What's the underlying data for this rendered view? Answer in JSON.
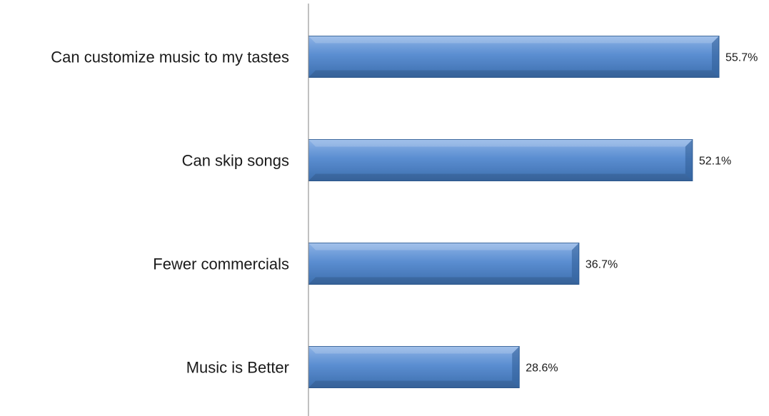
{
  "chart_data": {
    "type": "bar",
    "orientation": "horizontal",
    "categories": [
      "Can customize music to my tastes",
      "Can skip songs",
      "Fewer commercials",
      "Music is Better"
    ],
    "values": [
      55.7,
      52.1,
      36.7,
      28.6
    ],
    "value_labels": [
      "55.7%",
      "52.1%",
      "36.7%",
      "28.6%"
    ],
    "xlim": [
      0,
      60
    ],
    "grid": false,
    "legend": "none",
    "colors": {
      "bar_face": "#5b8ed1",
      "bar_top": "#8db3e6",
      "bar_bottom": "#3d6fae",
      "bar_end": "#2f5d96",
      "axis": "#808080"
    }
  }
}
